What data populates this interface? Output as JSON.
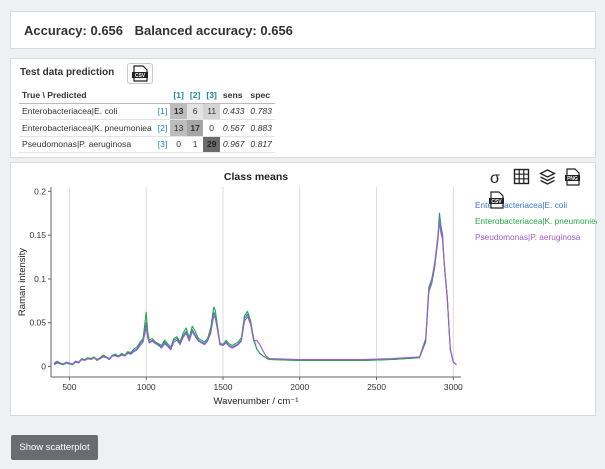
{
  "accuracy": {
    "accuracy_text": "Accuracy: 0.656",
    "balanced_text": "Balanced accuracy: 0.656"
  },
  "prediction": {
    "title": "Test data prediction",
    "corner_header": "True \\ Predicted",
    "col_headers": [
      "[1]",
      "[2]",
      "[3]"
    ],
    "sens_header": "sens",
    "spec_header": "spec",
    "rows": [
      {
        "label": "Enterobacteriacea|E. coli",
        "index": "[1]",
        "cells": [
          "13",
          "6",
          "11"
        ],
        "sens": "0.433",
        "spec": "0.783"
      },
      {
        "label": "Enterobacteriacea|K. pneumoniea",
        "index": "[2]",
        "cells": [
          "13",
          "17",
          "0"
        ],
        "sens": "0.567",
        "spec": "0.883"
      },
      {
        "label": "Pseudomonas|P. aeruginosa",
        "index": "[3]",
        "cells": [
          "0",
          "1",
          "29"
        ],
        "sens": "0.967",
        "spec": "0.817"
      }
    ]
  },
  "colors": {
    "ecoli": "#3a78c9",
    "kpneu": "#2aa548",
    "paer": "#a259d6",
    "link": "#1a8aa8"
  },
  "chart_data": {
    "type": "line",
    "title": "Class means",
    "xlabel": "Wavenumber / cm⁻¹",
    "ylabel": "Raman intensity",
    "xlim": [
      380,
      3050
    ],
    "ylim": [
      -0.012,
      0.205
    ],
    "xticks": [
      500,
      1000,
      1500,
      2000,
      2500,
      3000
    ],
    "yticks": [
      0,
      0.05,
      0.1,
      0.15,
      0.2
    ],
    "ytick_labels": [
      "0",
      "0.05",
      "0.1",
      "0.15",
      "0.2"
    ],
    "legend_position": "top-right",
    "series": [
      {
        "name": "Enterobacteriacea|E. coli",
        "color": "#3a78c9",
        "x": [
          400,
          420,
          440,
          460,
          480,
          500,
          520,
          540,
          560,
          580,
          600,
          620,
          640,
          660,
          680,
          700,
          720,
          740,
          760,
          780,
          800,
          820,
          840,
          860,
          880,
          900,
          920,
          940,
          960,
          980,
          1000,
          1010,
          1020,
          1040,
          1060,
          1080,
          1100,
          1120,
          1140,
          1160,
          1180,
          1200,
          1220,
          1240,
          1260,
          1280,
          1300,
          1320,
          1340,
          1360,
          1380,
          1400,
          1420,
          1440,
          1450,
          1460,
          1480,
          1500,
          1520,
          1540,
          1560,
          1580,
          1600,
          1620,
          1640,
          1660,
          1680,
          1700,
          1720,
          1740,
          1760,
          1780,
          1800,
          2000,
          2200,
          2400,
          2600,
          2780,
          2820,
          2840,
          2860,
          2870,
          2880,
          2900,
          2910,
          2920,
          2930,
          2940,
          2950,
          2960,
          2980,
          3000,
          3020
        ],
        "y": [
          0.003,
          0.005,
          0.003,
          0.002,
          0.004,
          0.003,
          0.002,
          0.005,
          0.004,
          0.008,
          0.007,
          0.009,
          0.008,
          0.01,
          0.007,
          0.009,
          0.012,
          0.01,
          0.008,
          0.012,
          0.013,
          0.011,
          0.014,
          0.012,
          0.016,
          0.015,
          0.018,
          0.02,
          0.026,
          0.03,
          0.05,
          0.035,
          0.028,
          0.03,
          0.027,
          0.025,
          0.022,
          0.028,
          0.024,
          0.02,
          0.03,
          0.032,
          0.026,
          0.035,
          0.04,
          0.03,
          0.042,
          0.036,
          0.03,
          0.028,
          0.026,
          0.03,
          0.04,
          0.062,
          0.058,
          0.048,
          0.025,
          0.024,
          0.028,
          0.024,
          0.022,
          0.024,
          0.026,
          0.03,
          0.055,
          0.06,
          0.05,
          0.03,
          0.02,
          0.015,
          0.012,
          0.01,
          0.008,
          0.007,
          0.007,
          0.007,
          0.008,
          0.01,
          0.03,
          0.09,
          0.1,
          0.11,
          0.12,
          0.15,
          0.175,
          0.16,
          0.15,
          0.12,
          0.1,
          0.08,
          0.02,
          0.005,
          0.002
        ]
      },
      {
        "name": "Enterobacteriacea|K. pneumoniea",
        "color": "#2aa548",
        "x": [
          400,
          420,
          440,
          460,
          480,
          500,
          520,
          540,
          560,
          580,
          600,
          620,
          640,
          660,
          680,
          700,
          720,
          740,
          760,
          780,
          800,
          820,
          840,
          860,
          880,
          900,
          920,
          940,
          960,
          980,
          1000,
          1010,
          1020,
          1040,
          1060,
          1080,
          1100,
          1120,
          1140,
          1160,
          1180,
          1200,
          1220,
          1240,
          1260,
          1280,
          1300,
          1320,
          1340,
          1360,
          1380,
          1400,
          1420,
          1440,
          1450,
          1460,
          1480,
          1500,
          1520,
          1540,
          1560,
          1580,
          1600,
          1620,
          1640,
          1660,
          1680,
          1700,
          1720,
          1740,
          1760,
          1780,
          1800,
          2000,
          2200,
          2400,
          2600,
          2780,
          2820,
          2840,
          2860,
          2870,
          2880,
          2900,
          2910,
          2920,
          2930,
          2940,
          2950,
          2960,
          2980,
          3000,
          3020
        ],
        "y": [
          0.002,
          0.004,
          0.003,
          0.002,
          0.004,
          0.003,
          0.002,
          0.006,
          0.005,
          0.009,
          0.008,
          0.01,
          0.009,
          0.011,
          0.008,
          0.01,
          0.013,
          0.011,
          0.009,
          0.013,
          0.014,
          0.012,
          0.015,
          0.013,
          0.017,
          0.016,
          0.02,
          0.022,
          0.028,
          0.032,
          0.062,
          0.04,
          0.03,
          0.032,
          0.028,
          0.026,
          0.024,
          0.03,
          0.026,
          0.022,
          0.032,
          0.034,
          0.028,
          0.038,
          0.044,
          0.033,
          0.046,
          0.04,
          0.032,
          0.03,
          0.028,
          0.032,
          0.044,
          0.068,
          0.064,
          0.052,
          0.027,
          0.025,
          0.03,
          0.026,
          0.024,
          0.026,
          0.028,
          0.033,
          0.058,
          0.063,
          0.052,
          0.032,
          0.02,
          0.015,
          0.012,
          0.01,
          0.008,
          0.007,
          0.007,
          0.007,
          0.008,
          0.01,
          0.028,
          0.085,
          0.095,
          0.105,
          0.115,
          0.145,
          0.17,
          0.155,
          0.145,
          0.118,
          0.098,
          0.078,
          0.019,
          0.005,
          0.002
        ]
      },
      {
        "name": "Pseudomonas|P. aeruginosa",
        "color": "#a259d6",
        "x": [
          400,
          420,
          440,
          460,
          480,
          500,
          520,
          540,
          560,
          580,
          600,
          620,
          640,
          660,
          680,
          700,
          720,
          740,
          760,
          780,
          800,
          820,
          840,
          860,
          880,
          900,
          920,
          940,
          960,
          980,
          1000,
          1010,
          1020,
          1040,
          1060,
          1080,
          1100,
          1120,
          1140,
          1160,
          1180,
          1200,
          1220,
          1240,
          1260,
          1280,
          1300,
          1320,
          1340,
          1360,
          1380,
          1400,
          1420,
          1440,
          1450,
          1460,
          1480,
          1500,
          1520,
          1540,
          1560,
          1580,
          1600,
          1620,
          1640,
          1660,
          1680,
          1700,
          1720,
          1740,
          1760,
          1780,
          1800,
          2000,
          2200,
          2400,
          2600,
          2780,
          2820,
          2840,
          2860,
          2870,
          2880,
          2900,
          2910,
          2920,
          2930,
          2940,
          2950,
          2960,
          2980,
          3000,
          3020
        ],
        "y": [
          0.004,
          0.006,
          0.004,
          0.003,
          0.005,
          0.004,
          0.003,
          0.006,
          0.005,
          0.008,
          0.007,
          0.009,
          0.008,
          0.01,
          0.008,
          0.009,
          0.011,
          0.01,
          0.009,
          0.012,
          0.012,
          0.011,
          0.013,
          0.012,
          0.015,
          0.014,
          0.017,
          0.019,
          0.024,
          0.028,
          0.045,
          0.033,
          0.027,
          0.029,
          0.026,
          0.024,
          0.021,
          0.026,
          0.023,
          0.019,
          0.028,
          0.03,
          0.025,
          0.033,
          0.038,
          0.029,
          0.04,
          0.034,
          0.029,
          0.027,
          0.025,
          0.029,
          0.038,
          0.058,
          0.055,
          0.046,
          0.026,
          0.024,
          0.027,
          0.023,
          0.021,
          0.023,
          0.025,
          0.029,
          0.052,
          0.057,
          0.048,
          0.029,
          0.03,
          0.025,
          0.018,
          0.012,
          0.009,
          0.008,
          0.008,
          0.008,
          0.009,
          0.011,
          0.032,
          0.088,
          0.098,
          0.108,
          0.118,
          0.148,
          0.165,
          0.152,
          0.145,
          0.12,
          0.1,
          0.08,
          0.02,
          0.005,
          0.002
        ]
      }
    ]
  },
  "buttons": {
    "scatter": "Show scatterplot"
  }
}
